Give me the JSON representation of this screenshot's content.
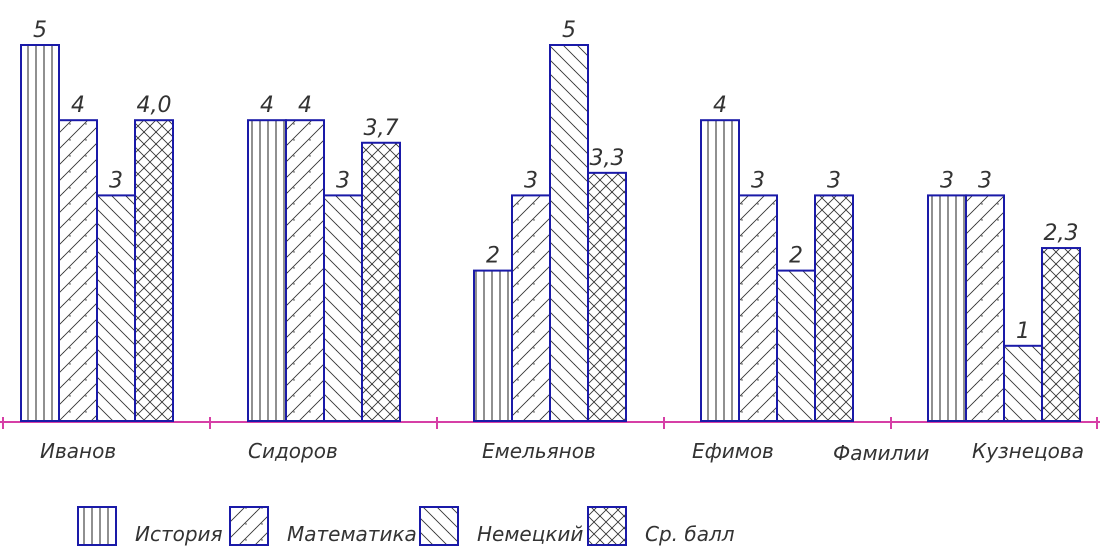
{
  "chart_data": {
    "type": "bar",
    "categories": [
      "Иванов",
      "Сидоров",
      "Емельянов",
      "Ефимов",
      "Кузнецова"
    ],
    "series": [
      {
        "name": "История",
        "values": [
          5,
          4,
          2,
          4,
          3
        ],
        "value_labels": [
          "5",
          "4",
          "2",
          "4",
          "3"
        ]
      },
      {
        "name": "Математика",
        "values": [
          4,
          4,
          3,
          3,
          3
        ],
        "value_labels": [
          "4",
          "4",
          "3",
          "3",
          "3"
        ]
      },
      {
        "name": "Немецкий",
        "values": [
          3,
          3,
          5,
          2,
          1
        ],
        "value_labels": [
          "3",
          "3",
          "5",
          "2",
          "1"
        ]
      },
      {
        "name": "Ср. балл",
        "values": [
          4.0,
          3.7,
          3.3,
          3.0,
          2.3
        ],
        "value_labels": [
          "4,0",
          "3,7",
          "3,3",
          "3",
          "2,3"
        ]
      }
    ],
    "xlabel": "Фамилии",
    "ylabel": "",
    "ylim": [
      0,
      5
    ],
    "grid": false,
    "legend_position": "bottom",
    "bar_stroke_color": "#1a1aa8",
    "axis_color": "#d63fa6",
    "text_color": "#333333"
  }
}
